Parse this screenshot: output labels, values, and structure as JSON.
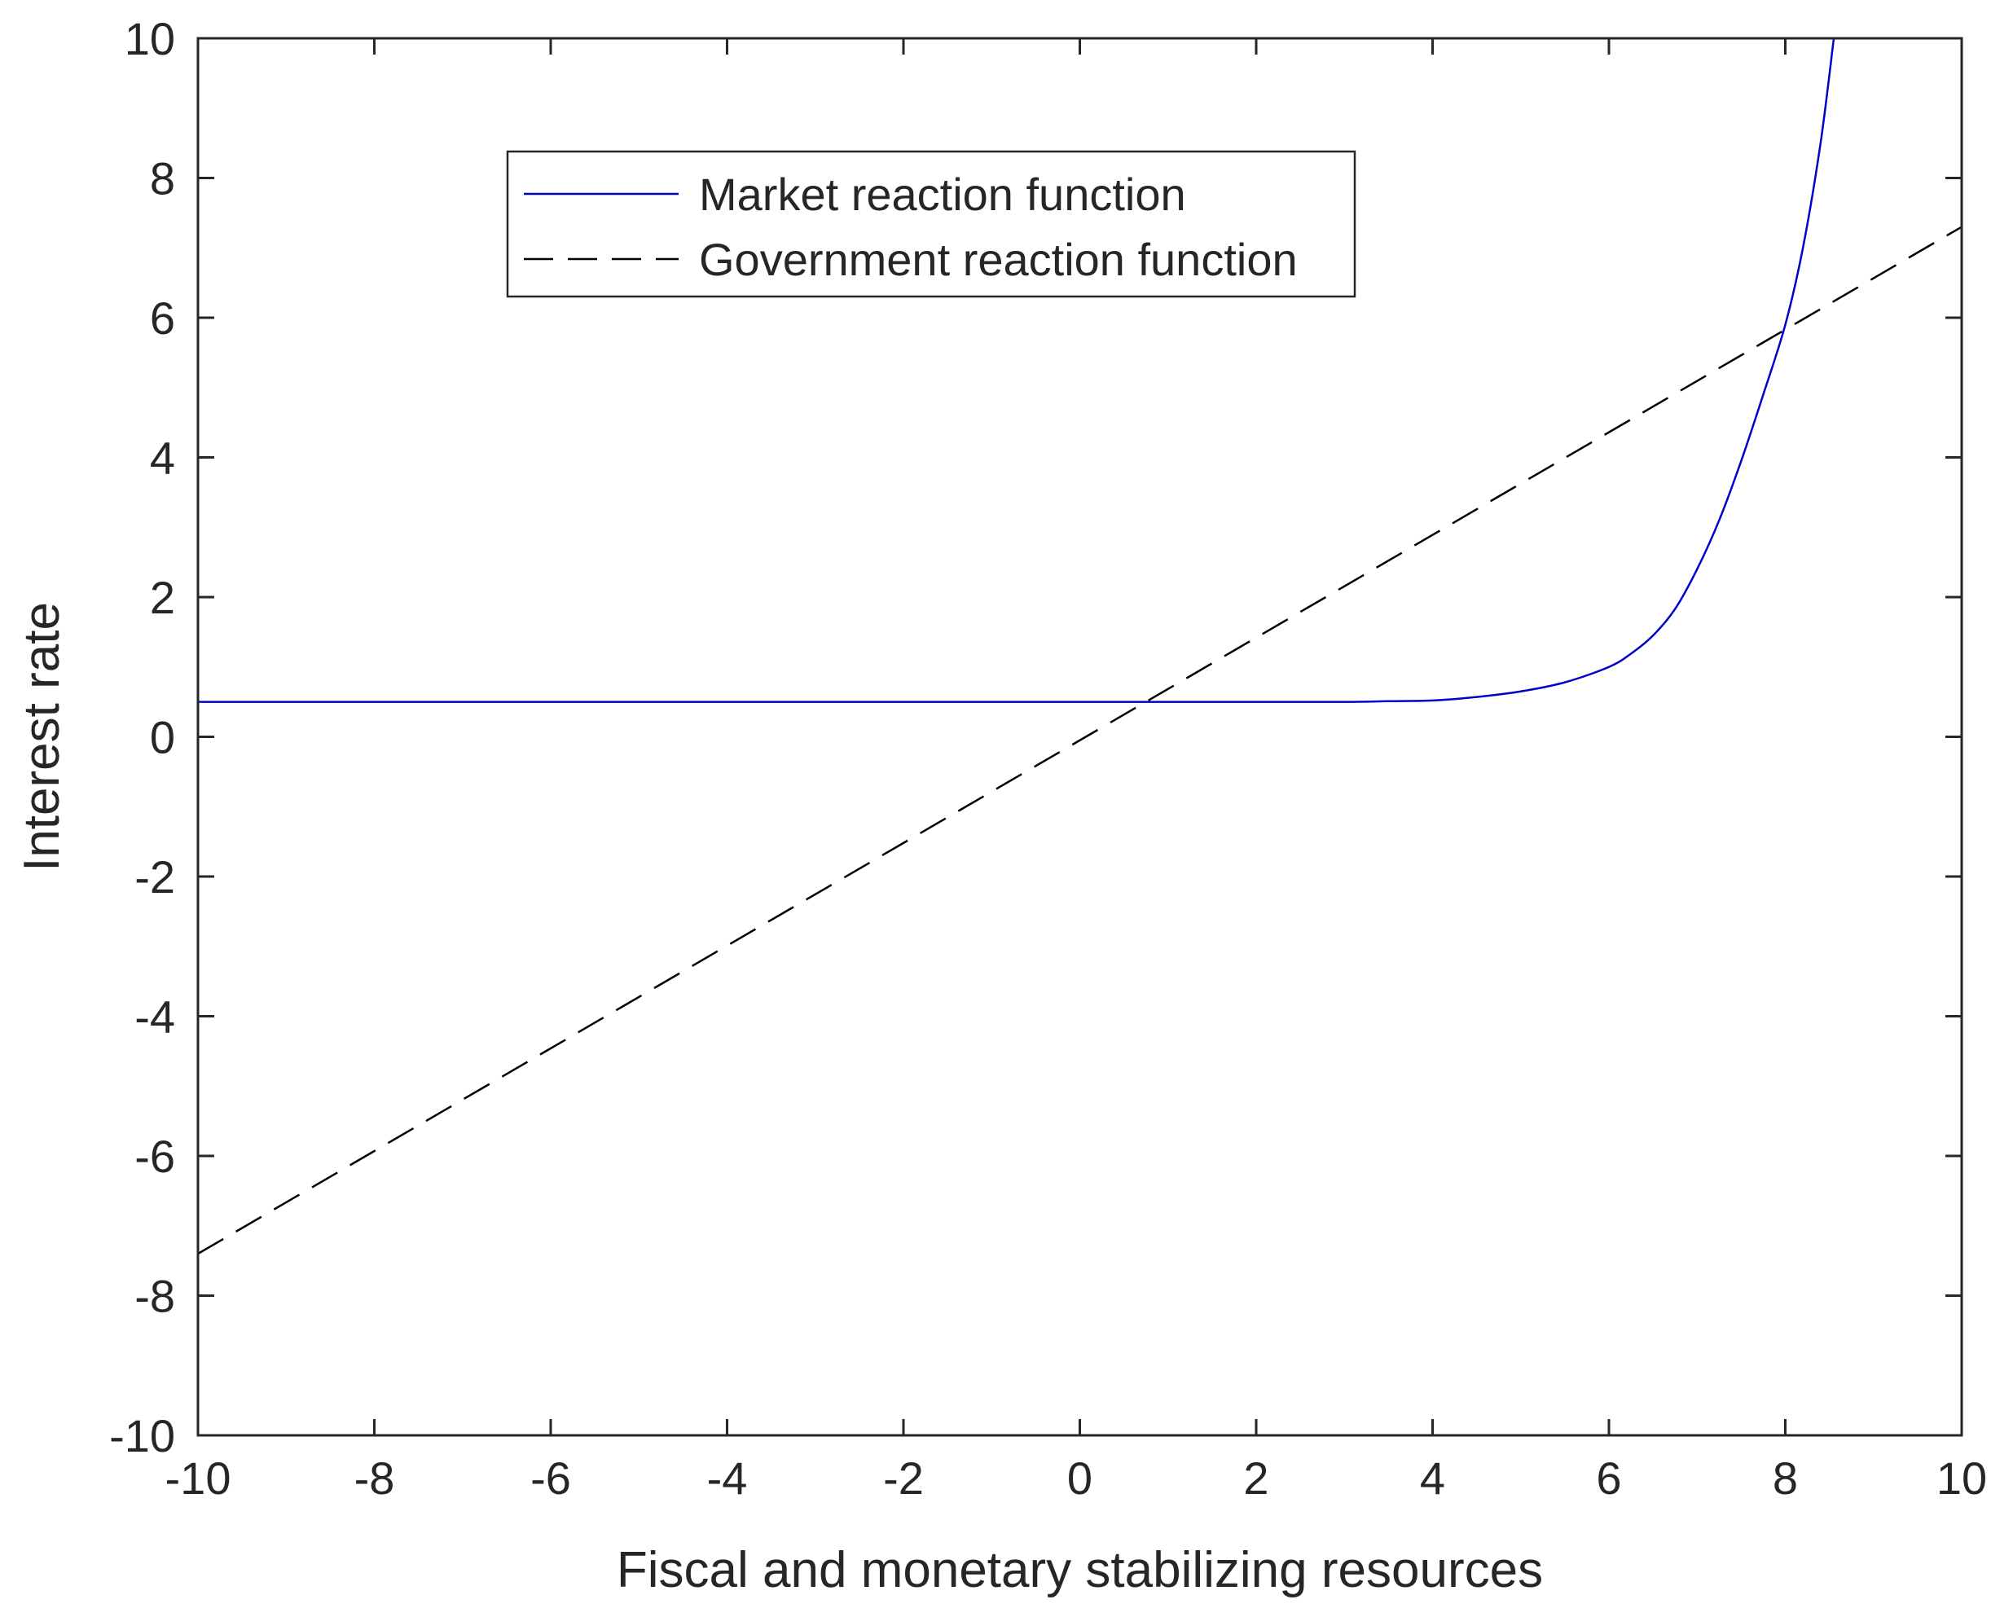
{
  "chart_data": {
    "type": "line",
    "xlabel": "Fiscal and monetary stabilizing resources",
    "ylabel": "Interest rate",
    "xlim": [
      -10,
      10
    ],
    "ylim": [
      -10,
      10
    ],
    "xticks": [
      -10,
      -8,
      -6,
      -4,
      -2,
      0,
      2,
      4,
      6,
      8,
      10
    ],
    "yticks": [
      -10,
      -8,
      -6,
      -4,
      -2,
      0,
      2,
      4,
      6,
      8,
      10
    ],
    "grid": false,
    "legend_position": "top-center",
    "series": [
      {
        "name": "Market reaction function",
        "style": "solid",
        "color": "#0000cc",
        "x": [
          -10,
          -8,
          -6,
          -4,
          -2,
          0,
          2,
          3,
          3.5,
          4,
          4.5,
          5,
          5.5,
          6,
          6.25,
          6.5,
          6.75,
          7,
          7.25,
          7.5,
          7.75,
          8,
          8.2,
          8.4,
          8.55
        ],
        "y": [
          0.5,
          0.5,
          0.5,
          0.5,
          0.5,
          0.5,
          0.5,
          0.5,
          0.51,
          0.52,
          0.57,
          0.65,
          0.78,
          1.0,
          1.19,
          1.45,
          1.83,
          2.4,
          3.1,
          3.95,
          4.9,
          5.9,
          7.0,
          8.5,
          10.0
        ]
      },
      {
        "name": "Government reaction function",
        "style": "dashed",
        "color": "#000000",
        "x": [
          -10,
          10
        ],
        "y": [
          -7.4,
          7.3
        ]
      }
    ]
  }
}
